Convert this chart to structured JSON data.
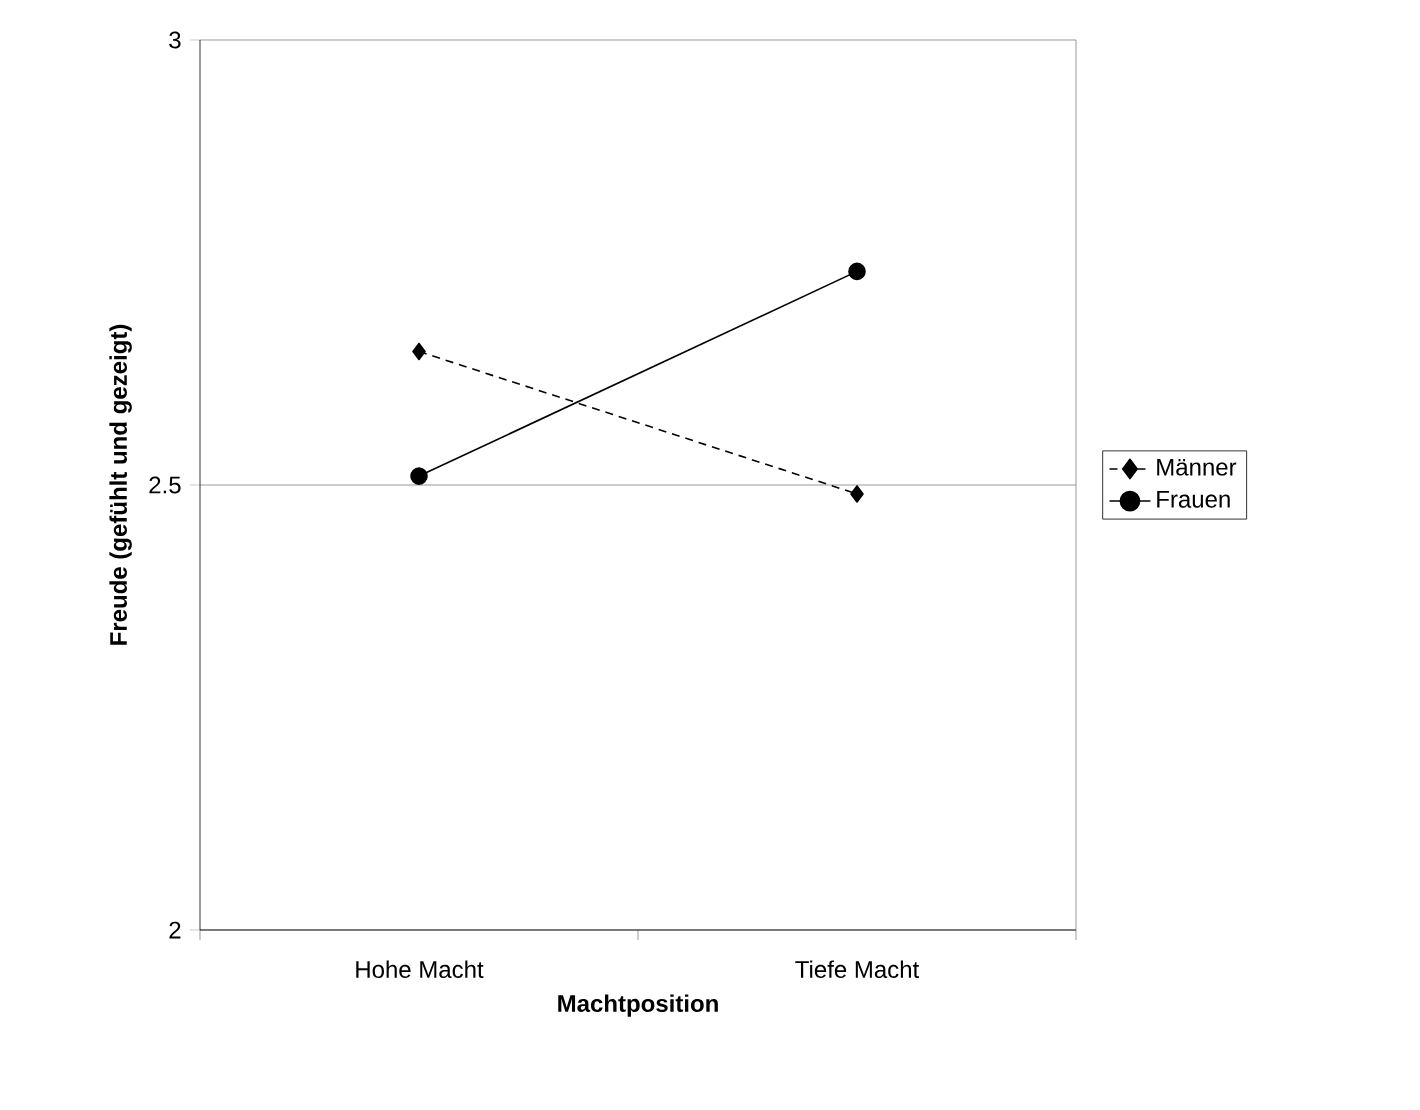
{
  "chart_data": {
    "type": "line",
    "xlabel": "Machtposition",
    "ylabel": "Freude (gefühlt und gezeigt)",
    "categories": [
      "Hohe Macht",
      "Tiefe Macht"
    ],
    "series": [
      {
        "name": "Männer",
        "color": "#000000",
        "values": [
          2.65,
          2.49
        ],
        "marker": "diamond",
        "line_style": "dashed"
      },
      {
        "name": "Frauen",
        "color": "#000000",
        "values": [
          2.51,
          2.74
        ],
        "marker": "circle",
        "line_style": "solid"
      }
    ],
    "ylim": [
      2,
      3
    ],
    "yticks": [
      2,
      2.5,
      3
    ],
    "grid": "y",
    "legend": "right"
  }
}
